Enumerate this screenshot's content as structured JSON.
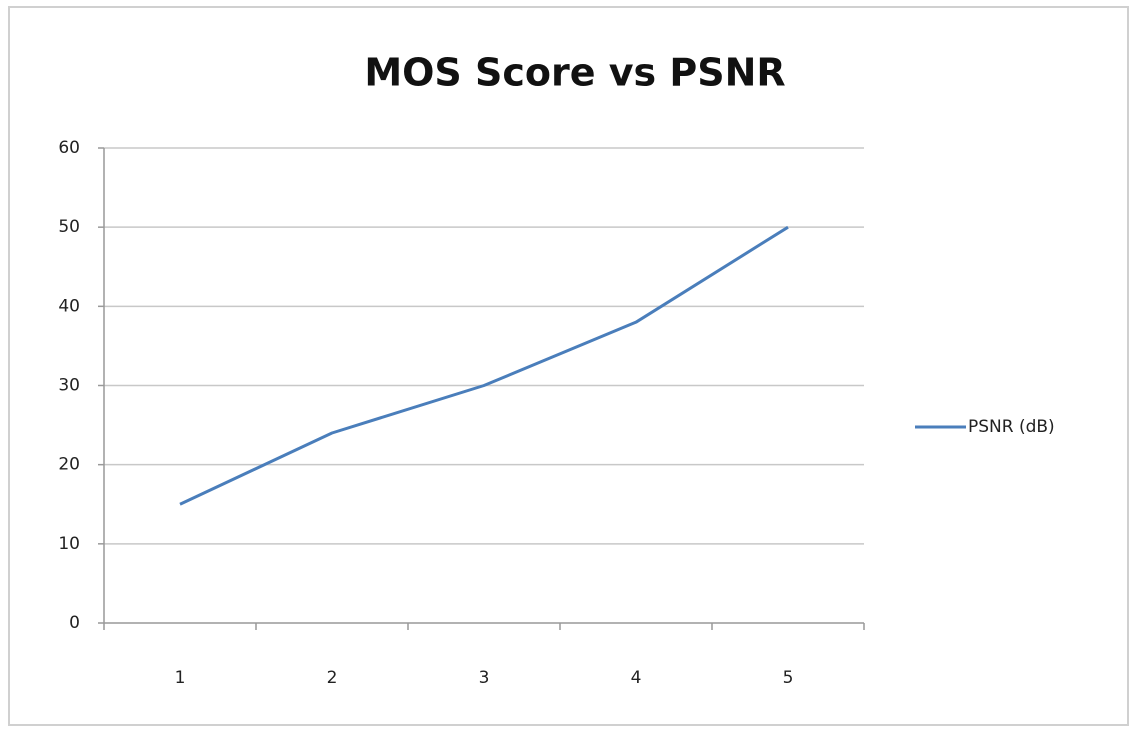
{
  "chart_data": {
    "type": "line",
    "title": "MOS Score vs PSNR",
    "categories": [
      "1",
      "2",
      "3",
      "4",
      "5"
    ],
    "series": [
      {
        "name": "PSNR (dB)",
        "color": "#4a7ebb",
        "values": [
          15,
          24,
          30,
          38,
          50
        ]
      }
    ],
    "ylim": [
      0,
      60
    ],
    "yticks": [
      0,
      10,
      20,
      30,
      40,
      50,
      60
    ],
    "grid": true,
    "legend": "right"
  }
}
